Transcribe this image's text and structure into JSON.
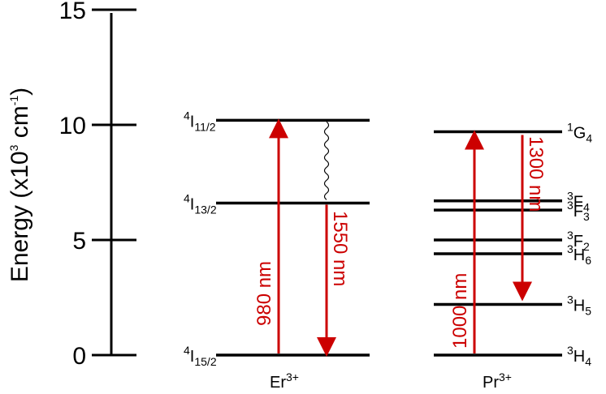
{
  "axis": {
    "title_main": "Energy (x10",
    "title_sup": "3",
    "title_mid": " cm",
    "title_sup2": "-1",
    "title_end": ")",
    "ticks": [
      {
        "value": 0,
        "label": "0"
      },
      {
        "value": 5,
        "label": "5"
      },
      {
        "value": 10,
        "label": "10"
      },
      {
        "value": 15,
        "label": "15"
      }
    ],
    "range": [
      0,
      15
    ]
  },
  "er": {
    "ion": "Er",
    "ion_sup": "3+",
    "levels": [
      {
        "energy": 0,
        "sup": "4",
        "base": "I",
        "sub": "15/2"
      },
      {
        "energy": 6.6,
        "sup": "4",
        "base": "I",
        "sub": "13/2"
      },
      {
        "energy": 10.2,
        "sup": "4",
        "base": "I",
        "sub": "11/2"
      }
    ],
    "pump_label": "980 nm",
    "emission_label": "1550 nm"
  },
  "pr": {
    "ion": "Pr",
    "ion_sup": "3+",
    "levels": [
      {
        "energy": 0,
        "sup": "3",
        "base": "H",
        "sub": "4"
      },
      {
        "energy": 2.2,
        "sup": "3",
        "base": "H",
        "sub": "5"
      },
      {
        "energy": 4.4,
        "sup": "3",
        "base": "H",
        "sub": "6"
      },
      {
        "energy": 5.0,
        "sup": "3",
        "base": "F",
        "sub": "2"
      },
      {
        "energy": 6.3,
        "sup": "3",
        "base": "F",
        "sub": "3"
      },
      {
        "energy": 6.7,
        "sup": "3",
        "base": "F",
        "sub": "4"
      },
      {
        "energy": 9.7,
        "sup": "1",
        "base": "G",
        "sub": "4"
      }
    ],
    "pump_label": "1000 nm",
    "emission_label": "1300 nm"
  },
  "colors": {
    "arrow": "#cc0000",
    "line": "#000000"
  }
}
